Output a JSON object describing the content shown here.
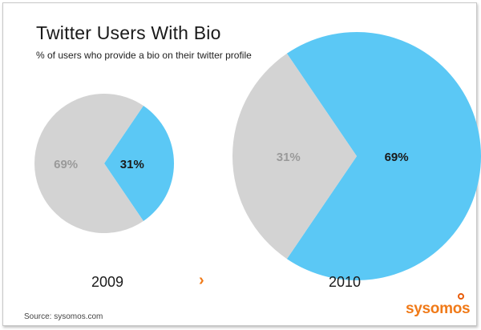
{
  "chart_data": [
    {
      "type": "pie",
      "title": "Twitter Users With Bio",
      "subtitle": "% of users who provide a bio on their twitter profile",
      "category": "2009",
      "slices": [
        {
          "label": "31%",
          "value": 31,
          "color": "#5bc8f5"
        },
        {
          "label": "69%",
          "value": 69,
          "color": "#d3d3d3"
        }
      ]
    },
    {
      "type": "pie",
      "category": "2010",
      "slices": [
        {
          "label": "69%",
          "value": 69,
          "color": "#5bc8f5"
        },
        {
          "label": "31%",
          "value": 31,
          "color": "#d3d3d3"
        }
      ]
    }
  ],
  "labels": {
    "year_left": "2009",
    "year_right": "2010",
    "arrow": "›",
    "source": "Source: sysomos.com",
    "logo": "sysomos"
  },
  "colors": {
    "highlight": "#5bc8f5",
    "base": "#d3d3d3",
    "accent": "#f07a18"
  }
}
